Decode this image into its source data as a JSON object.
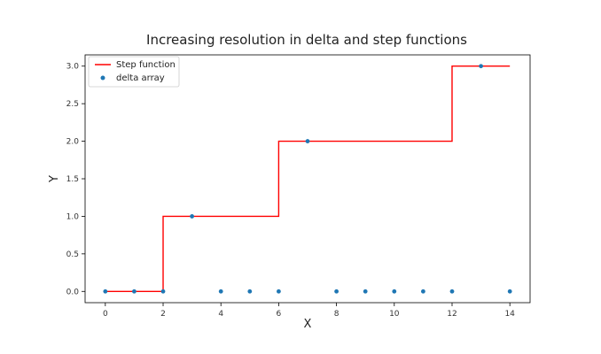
{
  "chart_data": {
    "type": "line",
    "title": "Increasing resolution in delta and step functions",
    "xlabel": "X",
    "ylabel": "Y",
    "xlim": [
      -0.7,
      14.7
    ],
    "ylim": [
      -0.15,
      3.15
    ],
    "xticks": [
      0,
      2,
      4,
      6,
      8,
      10,
      12,
      14
    ],
    "yticks": [
      0.0,
      0.5,
      1.0,
      1.5,
      2.0,
      2.5,
      3.0
    ],
    "xtick_labels": [
      "0",
      "2",
      "4",
      "6",
      "8",
      "10",
      "12",
      "14"
    ],
    "ytick_labels": [
      "0.0",
      "0.5",
      "1.0",
      "1.5",
      "2.0",
      "2.5",
      "3.0"
    ],
    "grid": false,
    "legend_position": "top-left",
    "series": [
      {
        "name": "Step function",
        "kind": "step-line",
        "color": "#ff0000",
        "x": [
          0,
          2,
          2,
          6,
          6,
          12,
          12,
          14
        ],
        "y": [
          0,
          0,
          1,
          1,
          2,
          2,
          3,
          3
        ]
      },
      {
        "name": "delta array",
        "kind": "scatter",
        "color": "#1f77b4",
        "x": [
          0,
          1,
          2,
          3,
          4,
          5,
          6,
          7,
          8,
          9,
          10,
          11,
          12,
          13,
          14
        ],
        "y": [
          0,
          0,
          0,
          1,
          0,
          0,
          0,
          2,
          0,
          0,
          0,
          0,
          0,
          3,
          0
        ]
      }
    ]
  }
}
